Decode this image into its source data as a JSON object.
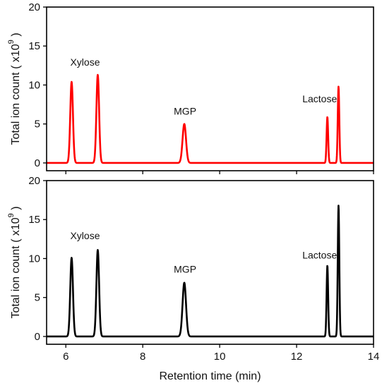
{
  "chart_data": [
    {
      "type": "line",
      "panel": "top",
      "color": "#ff0000",
      "ylabel_main": "Total ion count ( x10",
      "ylabel_exp": "9",
      "ylabel_close": " )",
      "xlim": [
        5.5,
        14
      ],
      "ylim": [
        -1,
        20
      ],
      "yticks": [
        0,
        5,
        10,
        15,
        20
      ],
      "show_xtick_labels": false,
      "grid": false,
      "annotations": [
        {
          "text": "Xylose",
          "x": 6.5,
          "y": 12.5
        },
        {
          "text": "MGP",
          "x": 9.1,
          "y": 6.2
        },
        {
          "text": "Lactose",
          "x": 12.6,
          "y": 7.8
        }
      ],
      "peaks": [
        {
          "rt": 6.15,
          "height": 10.4,
          "width": 0.035
        },
        {
          "rt": 6.83,
          "height": 11.3,
          "width": 0.035
        },
        {
          "rt": 9.08,
          "height": 5.0,
          "width": 0.045
        },
        {
          "rt": 12.8,
          "height": 5.9,
          "width": 0.02
        },
        {
          "rt": 13.09,
          "height": 9.8,
          "width": 0.02
        }
      ]
    },
    {
      "type": "line",
      "panel": "bottom",
      "color": "#000000",
      "ylabel_main": "Total ion count ( x10",
      "ylabel_exp": "9",
      "ylabel_close": " )",
      "xlabel": "Retention time (min)",
      "xlim": [
        5.5,
        14
      ],
      "ylim": [
        -1,
        20
      ],
      "yticks": [
        0,
        5,
        10,
        15,
        20
      ],
      "xticks": [
        6,
        8,
        10,
        12,
        14
      ],
      "show_xtick_labels": true,
      "grid": false,
      "annotations": [
        {
          "text": "Xylose",
          "x": 6.5,
          "y": 12.5
        },
        {
          "text": "MGP",
          "x": 9.1,
          "y": 8.2
        },
        {
          "text": "Lactose",
          "x": 12.6,
          "y": 10.0
        }
      ],
      "peaks": [
        {
          "rt": 6.15,
          "height": 10.1,
          "width": 0.035
        },
        {
          "rt": 6.83,
          "height": 11.1,
          "width": 0.035
        },
        {
          "rt": 9.08,
          "height": 6.9,
          "width": 0.045
        },
        {
          "rt": 12.8,
          "height": 9.1,
          "width": 0.02
        },
        {
          "rt": 13.09,
          "height": 16.8,
          "width": 0.02
        }
      ]
    }
  ]
}
